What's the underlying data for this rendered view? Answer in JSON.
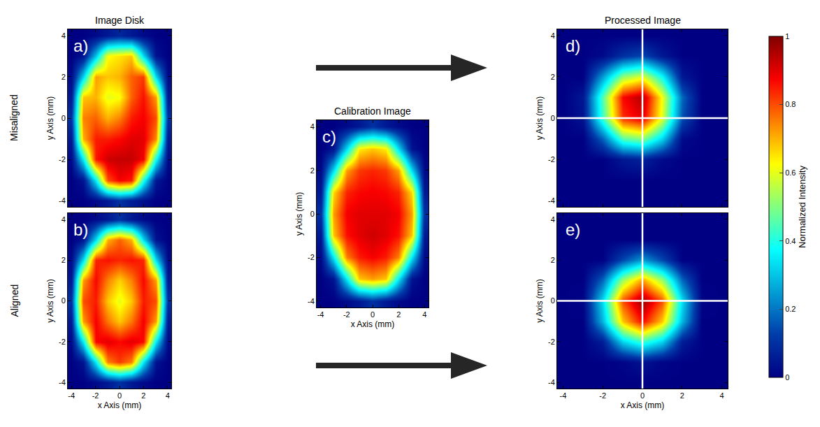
{
  "chart_data": [
    {
      "type": "heatmap",
      "label": "a)",
      "title": "Image Disk",
      "row_label": "Misaligned",
      "ylabel": "y Axis (mm)",
      "tick_labels": "y",
      "x": [
        -4,
        -3,
        -2,
        -1,
        0,
        1,
        2,
        3,
        4
      ],
      "y": [
        -4,
        -3,
        -2,
        -1,
        0,
        1,
        2,
        3,
        4
      ],
      "xlim": [
        -4.3,
        4.3
      ],
      "ylim": [
        -4.3,
        4.3
      ],
      "xticks": [
        -4,
        -2,
        0,
        2,
        4
      ],
      "yticks": [
        -4,
        -2,
        0,
        2,
        4
      ],
      "z": [
        [
          0,
          0,
          0.02,
          0.05,
          0.1,
          0.06,
          0.03,
          0,
          0
        ],
        [
          0,
          0.04,
          0.35,
          0.8,
          0.88,
          0.85,
          0.4,
          0.05,
          0
        ],
        [
          0.02,
          0.35,
          0.85,
          0.92,
          0.93,
          0.93,
          0.88,
          0.38,
          0.02
        ],
        [
          0.05,
          0.7,
          0.85,
          0.85,
          0.87,
          0.9,
          0.9,
          0.74,
          0.05
        ],
        [
          0.1,
          0.75,
          0.78,
          0.7,
          0.75,
          0.85,
          0.88,
          0.8,
          0.1
        ],
        [
          0.05,
          0.68,
          0.7,
          0.6,
          0.62,
          0.78,
          0.86,
          0.72,
          0.05
        ],
        [
          0.02,
          0.32,
          0.72,
          0.68,
          0.7,
          0.78,
          0.82,
          0.33,
          0.02
        ],
        [
          0,
          0.04,
          0.3,
          0.62,
          0.65,
          0.68,
          0.33,
          0.04,
          0
        ],
        [
          0,
          0,
          0.02,
          0.05,
          0.08,
          0.05,
          0.02,
          0,
          0
        ]
      ]
    },
    {
      "type": "heatmap",
      "label": "b)",
      "row_label": "Aligned",
      "xlabel": "x Axis (mm)",
      "ylabel": "y Axis (mm)",
      "x": [
        -4,
        -3,
        -2,
        -1,
        0,
        1,
        2,
        3,
        4
      ],
      "y": [
        -4,
        -3,
        -2,
        -1,
        0,
        1,
        2,
        3,
        4
      ],
      "xlim": [
        -4.3,
        4.3
      ],
      "ylim": [
        -4.3,
        4.3
      ],
      "xticks": [
        -4,
        -2,
        0,
        2,
        4
      ],
      "yticks": [
        -4,
        -2,
        0,
        2,
        4
      ],
      "z": [
        [
          0,
          0,
          0.02,
          0.05,
          0.1,
          0.05,
          0.02,
          0,
          0
        ],
        [
          0,
          0.04,
          0.35,
          0.75,
          0.82,
          0.75,
          0.35,
          0.04,
          0
        ],
        [
          0.02,
          0.35,
          0.87,
          0.9,
          0.87,
          0.9,
          0.87,
          0.35,
          0.02
        ],
        [
          0.05,
          0.72,
          0.88,
          0.76,
          0.68,
          0.76,
          0.88,
          0.72,
          0.05
        ],
        [
          0.1,
          0.8,
          0.85,
          0.68,
          0.6,
          0.68,
          0.85,
          0.8,
          0.1
        ],
        [
          0.05,
          0.72,
          0.87,
          0.75,
          0.67,
          0.75,
          0.87,
          0.72,
          0.05
        ],
        [
          0.02,
          0.33,
          0.84,
          0.86,
          0.84,
          0.86,
          0.84,
          0.33,
          0.02
        ],
        [
          0,
          0.04,
          0.33,
          0.7,
          0.78,
          0.7,
          0.33,
          0.04,
          0
        ],
        [
          0,
          0,
          0.02,
          0.05,
          0.1,
          0.05,
          0.02,
          0,
          0
        ]
      ]
    },
    {
      "type": "heatmap",
      "label": "c)",
      "title": "Calibration Image",
      "xlabel": "x Axis (mm)",
      "ylabel": "y Axis (mm)",
      "x": [
        -4,
        -3,
        -2,
        -1,
        0,
        1,
        2,
        3,
        4
      ],
      "y": [
        -4,
        -3,
        -2,
        -1,
        0,
        1,
        2,
        3,
        4
      ],
      "xlim": [
        -4.3,
        4.3
      ],
      "ylim": [
        -4.3,
        4.3
      ],
      "xticks": [
        -4,
        -2,
        0,
        2,
        4
      ],
      "yticks": [
        -4,
        -2,
        0,
        2,
        4
      ],
      "z": [
        [
          0,
          0,
          0.02,
          0.05,
          0.1,
          0.05,
          0.02,
          0,
          0
        ],
        [
          0,
          0.04,
          0.35,
          0.68,
          0.72,
          0.68,
          0.35,
          0.04,
          0
        ],
        [
          0.02,
          0.35,
          0.75,
          0.85,
          0.88,
          0.85,
          0.75,
          0.35,
          0.02
        ],
        [
          0.05,
          0.68,
          0.86,
          0.9,
          0.92,
          0.9,
          0.86,
          0.68,
          0.05
        ],
        [
          0.1,
          0.72,
          0.88,
          0.9,
          0.9,
          0.9,
          0.88,
          0.72,
          0.1
        ],
        [
          0.05,
          0.66,
          0.84,
          0.87,
          0.88,
          0.87,
          0.84,
          0.66,
          0.05
        ],
        [
          0.02,
          0.33,
          0.72,
          0.82,
          0.84,
          0.82,
          0.72,
          0.33,
          0.02
        ],
        [
          0,
          0.04,
          0.33,
          0.64,
          0.68,
          0.64,
          0.33,
          0.04,
          0
        ],
        [
          0,
          0,
          0.02,
          0.05,
          0.1,
          0.05,
          0.02,
          0,
          0
        ]
      ]
    },
    {
      "type": "heatmap",
      "label": "d)",
      "title": "Processed Image",
      "ylabel": "y Axis (mm)",
      "tick_labels": "y",
      "crosshair": {
        "x": 0,
        "y": 0
      },
      "x": [
        -4,
        -3,
        -2,
        -1,
        0,
        1,
        2,
        3,
        4
      ],
      "y": [
        -4,
        -3,
        -2,
        -1,
        0,
        1,
        2,
        3,
        4
      ],
      "xlim": [
        -4.3,
        4.3
      ],
      "ylim": [
        -4.3,
        4.3
      ],
      "xticks": [
        -4,
        -2,
        0,
        2,
        4
      ],
      "yticks": [
        -4,
        -2,
        0,
        2,
        4
      ],
      "z": [
        [
          0,
          0,
          0,
          0,
          0,
          0,
          0,
          0,
          0
        ],
        [
          0,
          0,
          0,
          0,
          0,
          0,
          0,
          0,
          0
        ],
        [
          0,
          0,
          0,
          0.05,
          0.07,
          0.02,
          0,
          0,
          0
        ],
        [
          0,
          0,
          0.17,
          0.45,
          0.5,
          0.32,
          0.02,
          0,
          0
        ],
        [
          0,
          0.04,
          0.43,
          0.83,
          0.9,
          0.6,
          0.15,
          0,
          0
        ],
        [
          0,
          0.05,
          0.45,
          0.87,
          0.95,
          0.62,
          0.18,
          0,
          0
        ],
        [
          0,
          0,
          0.25,
          0.52,
          0.6,
          0.38,
          0.05,
          0,
          0
        ],
        [
          0,
          0,
          0.02,
          0.1,
          0.14,
          0.05,
          0,
          0,
          0
        ],
        [
          0,
          0,
          0,
          0,
          0,
          0,
          0,
          0,
          0
        ]
      ]
    },
    {
      "type": "heatmap",
      "label": "e)",
      "xlabel": "x Axis (mm)",
      "ylabel": "y Axis (mm)",
      "crosshair": {
        "x": 0,
        "y": 0
      },
      "x": [
        -4,
        -3,
        -2,
        -1,
        0,
        1,
        2,
        3,
        4
      ],
      "y": [
        -4,
        -3,
        -2,
        -1,
        0,
        1,
        2,
        3,
        4
      ],
      "xlim": [
        -4.3,
        4.3
      ],
      "ylim": [
        -4.3,
        4.3
      ],
      "xticks": [
        -4,
        -2,
        0,
        2,
        4
      ],
      "yticks": [
        -4,
        -2,
        0,
        2,
        4
      ],
      "z": [
        [
          0,
          0,
          0,
          0,
          0,
          0,
          0,
          0,
          0
        ],
        [
          0,
          0,
          0,
          0.01,
          0.04,
          0.01,
          0,
          0,
          0
        ],
        [
          0,
          0,
          0.06,
          0.32,
          0.43,
          0.32,
          0.06,
          0,
          0
        ],
        [
          0,
          0,
          0.28,
          0.68,
          0.87,
          0.68,
          0.28,
          0,
          0
        ],
        [
          0,
          0.01,
          0.33,
          0.8,
          0.98,
          0.8,
          0.33,
          0.01,
          0
        ],
        [
          0,
          0,
          0.18,
          0.53,
          0.72,
          0.53,
          0.18,
          0,
          0
        ],
        [
          0,
          0,
          0,
          0.14,
          0.25,
          0.14,
          0,
          0,
          0
        ],
        [
          0,
          0,
          0,
          0,
          0,
          0,
          0,
          0,
          0
        ],
        [
          0,
          0,
          0,
          0,
          0,
          0,
          0,
          0,
          0
        ]
      ]
    }
  ],
  "colorbar": {
    "title": "Normalized Intensity",
    "range": [
      0,
      1
    ],
    "ticks": [
      0,
      0.2,
      0.4,
      0.6,
      0.8,
      1
    ]
  }
}
